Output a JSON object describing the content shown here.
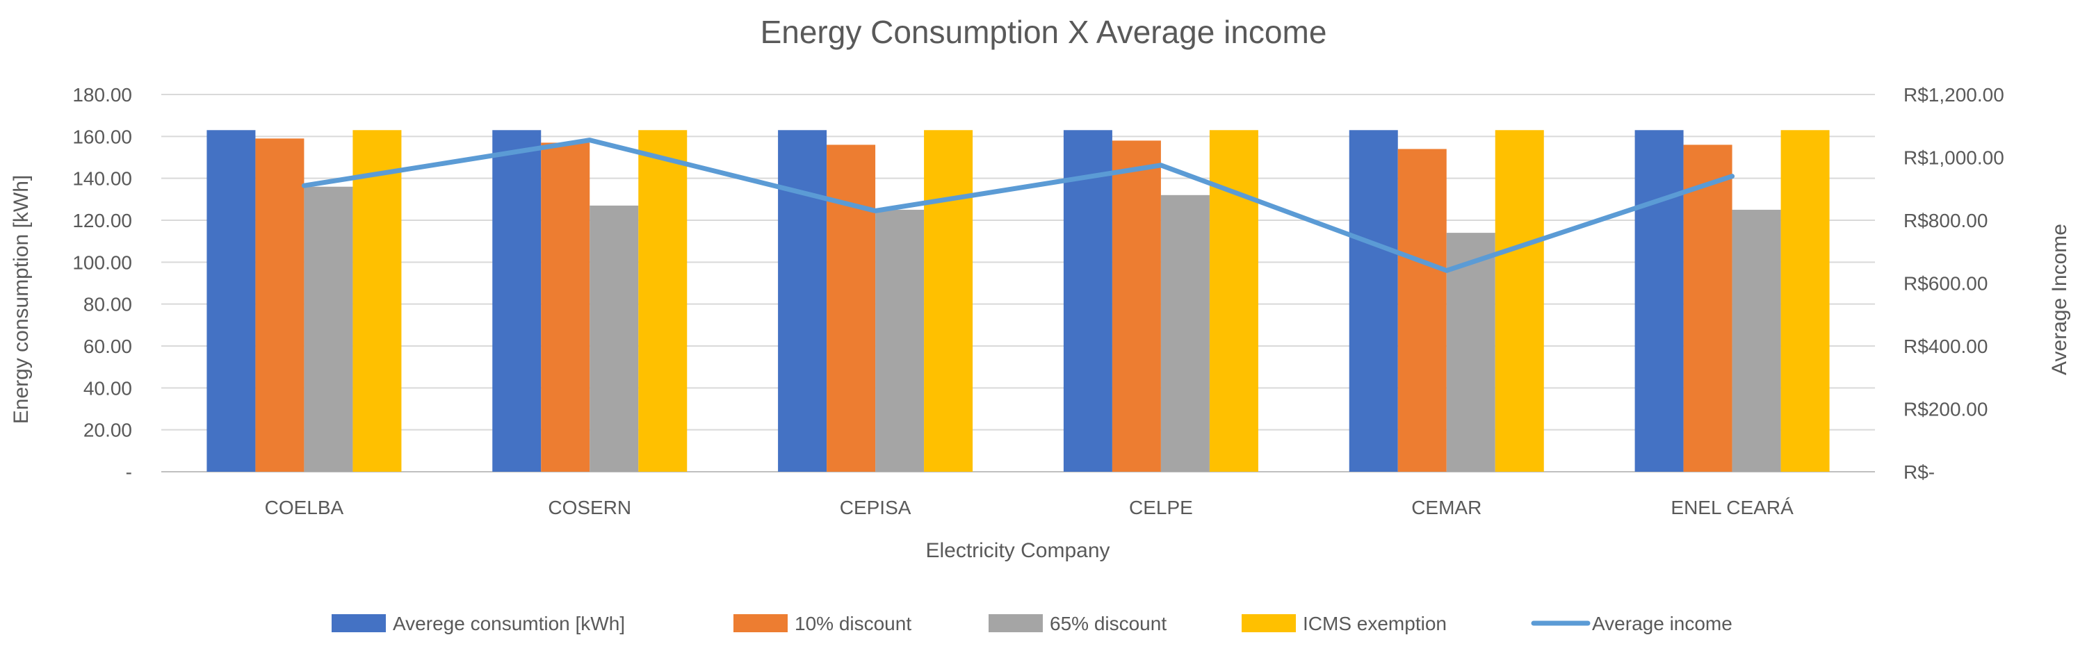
{
  "chart_data": {
    "type": "bar",
    "title": "Energy Consumption X Average income",
    "xlabel": "Electricity Company",
    "ylabel": "Energy consumption [kWh]",
    "y2label": "Average Income",
    "categories": [
      "COELBA",
      "COSERN",
      "CEPISA",
      "CELPE",
      "CEMAR",
      "ENEL CEARÁ"
    ],
    "ylim": [
      0,
      180
    ],
    "y_ticks": [
      0,
      20,
      40,
      60,
      80,
      100,
      120,
      140,
      160,
      180
    ],
    "y_tick_labels": [
      "-",
      "20.00",
      "40.00",
      "60.00",
      "80.00",
      "100.00",
      "120.00",
      "140.00",
      "160.00",
      "180.00"
    ],
    "y2lim": [
      0,
      1200
    ],
    "y2_ticks": [
      0,
      200,
      400,
      600,
      800,
      1000,
      1200
    ],
    "y2_tick_labels": [
      "R$-",
      "R$200.00",
      "R$400.00",
      "R$600.00",
      "R$800.00",
      "R$1,000.00",
      "R$1,200.00"
    ],
    "grid": true,
    "legend_position": "bottom",
    "series": [
      {
        "name": "Averege consumtion [kWh]",
        "type": "bar",
        "axis": "left",
        "color": "#4472C4",
        "values": [
          163,
          163,
          163,
          163,
          163,
          163
        ]
      },
      {
        "name": "10% discount",
        "type": "bar",
        "axis": "left",
        "color": "#ED7D31",
        "values": [
          159,
          157,
          156,
          158,
          154,
          156
        ]
      },
      {
        "name": "65% discount",
        "type": "bar",
        "axis": "left",
        "color": "#A5A5A5",
        "values": [
          136,
          127,
          125,
          132,
          114,
          125
        ]
      },
      {
        "name": "ICMS exemption",
        "type": "bar",
        "axis": "left",
        "color": "#FFC000",
        "values": [
          163,
          163,
          163,
          163,
          163,
          163
        ]
      },
      {
        "name": "Average income",
        "type": "line",
        "axis": "right",
        "color": "#5B9BD5",
        "values": [
          910,
          1055,
          830,
          975,
          640,
          940
        ]
      }
    ]
  }
}
